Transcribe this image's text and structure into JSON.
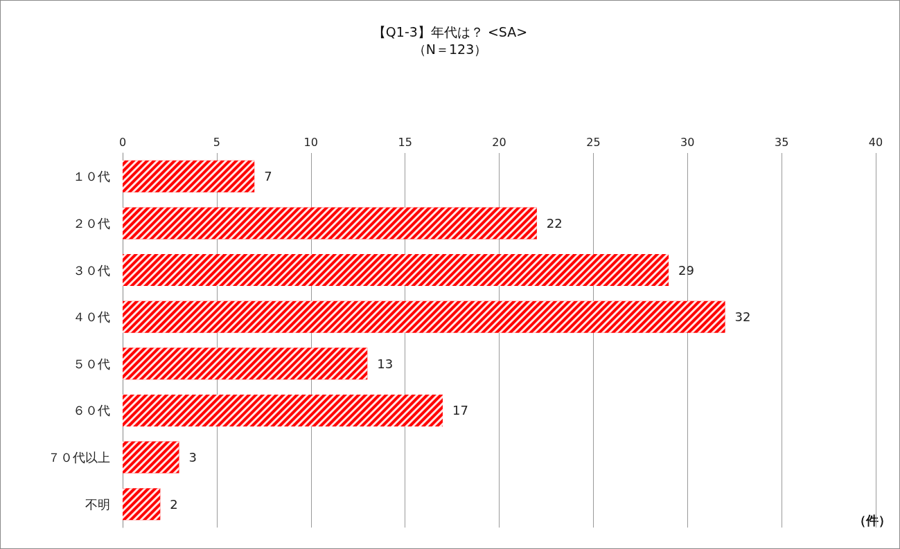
{
  "chart_data": {
    "type": "bar",
    "orientation": "horizontal",
    "title": "【Q1-3】年代は？ <SA>",
    "subtitle": "（N＝123）",
    "xlabel": "（件）",
    "categories": [
      "１０代",
      "２０代",
      "３０代",
      "４０代",
      "５０代",
      "６０代",
      "７０代以上",
      "不明"
    ],
    "values": [
      7,
      22,
      29,
      32,
      13,
      17,
      3,
      2
    ],
    "color": "#ff0000",
    "xlim": [
      0,
      40
    ],
    "xticks": [
      0,
      5,
      10,
      15,
      20,
      25,
      30,
      35,
      40
    ],
    "grid": "x",
    "data_labels": true
  }
}
